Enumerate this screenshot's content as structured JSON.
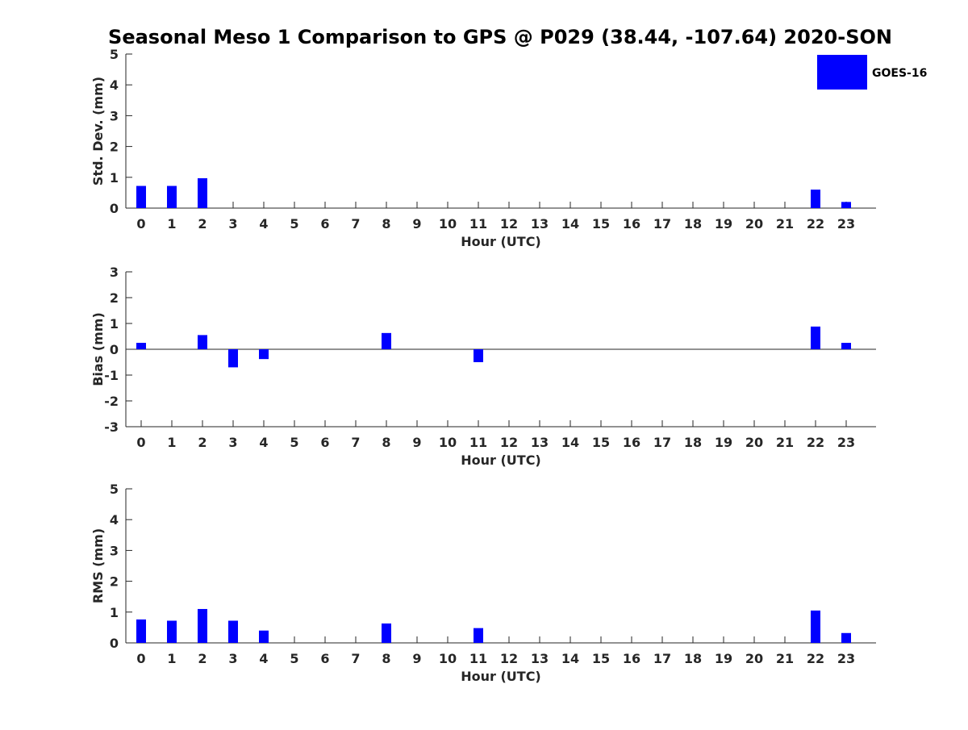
{
  "title": "Seasonal Meso 1 Comparison to GPS @ P029 (38.44, -107.64) 2020-SON",
  "legend": {
    "label": "GOES-16",
    "placement": "top-right",
    "color": "#0000ff"
  },
  "chart_data": [
    {
      "type": "bar",
      "ylabel": "Std. Dev. (mm)",
      "xlabel": "Hour (UTC)",
      "categories": [
        "0",
        "1",
        "2",
        "3",
        "4",
        "5",
        "6",
        "7",
        "8",
        "9",
        "10",
        "11",
        "12",
        "13",
        "14",
        "15",
        "16",
        "17",
        "18",
        "19",
        "20",
        "21",
        "22",
        "23"
      ],
      "ylim": [
        0,
        5
      ],
      "yticks": [
        "0",
        "1",
        "2",
        "3",
        "4",
        "5"
      ],
      "series": [
        {
          "name": "GOES-16",
          "color": "#0000ff",
          "values": [
            0.72,
            0.72,
            0.97,
            null,
            null,
            null,
            null,
            null,
            null,
            null,
            null,
            null,
            null,
            null,
            null,
            null,
            null,
            null,
            null,
            null,
            null,
            null,
            0.6,
            0.2
          ]
        }
      ]
    },
    {
      "type": "bar",
      "ylabel": "Bias (mm)",
      "xlabel": "Hour (UTC)",
      "categories": [
        "0",
        "1",
        "2",
        "3",
        "4",
        "5",
        "6",
        "7",
        "8",
        "9",
        "10",
        "11",
        "12",
        "13",
        "14",
        "15",
        "16",
        "17",
        "18",
        "19",
        "20",
        "21",
        "22",
        "23"
      ],
      "ylim": [
        -3,
        3
      ],
      "yticks": [
        "-3",
        "-2",
        "-1",
        "0",
        "1",
        "2",
        "3"
      ],
      "series": [
        {
          "name": "GOES-16",
          "color": "#0000ff",
          "values": [
            0.25,
            null,
            0.55,
            -0.7,
            -0.38,
            null,
            null,
            null,
            0.63,
            null,
            null,
            -0.5,
            null,
            null,
            null,
            null,
            null,
            null,
            null,
            null,
            null,
            null,
            0.88,
            0.25
          ]
        }
      ]
    },
    {
      "type": "bar",
      "ylabel": "RMS (mm)",
      "xlabel": "Hour (UTC)",
      "categories": [
        "0",
        "1",
        "2",
        "3",
        "4",
        "5",
        "6",
        "7",
        "8",
        "9",
        "10",
        "11",
        "12",
        "13",
        "14",
        "15",
        "16",
        "17",
        "18",
        "19",
        "20",
        "21",
        "22",
        "23"
      ],
      "ylim": [
        0,
        5
      ],
      "yticks": [
        "0",
        "1",
        "2",
        "3",
        "4",
        "5"
      ],
      "series": [
        {
          "name": "GOES-16",
          "color": "#0000ff",
          "values": [
            0.76,
            0.72,
            1.1,
            0.72,
            0.4,
            null,
            null,
            null,
            0.63,
            null,
            null,
            0.48,
            null,
            null,
            null,
            null,
            null,
            null,
            null,
            null,
            null,
            null,
            1.05,
            0.32
          ]
        }
      ]
    }
  ]
}
